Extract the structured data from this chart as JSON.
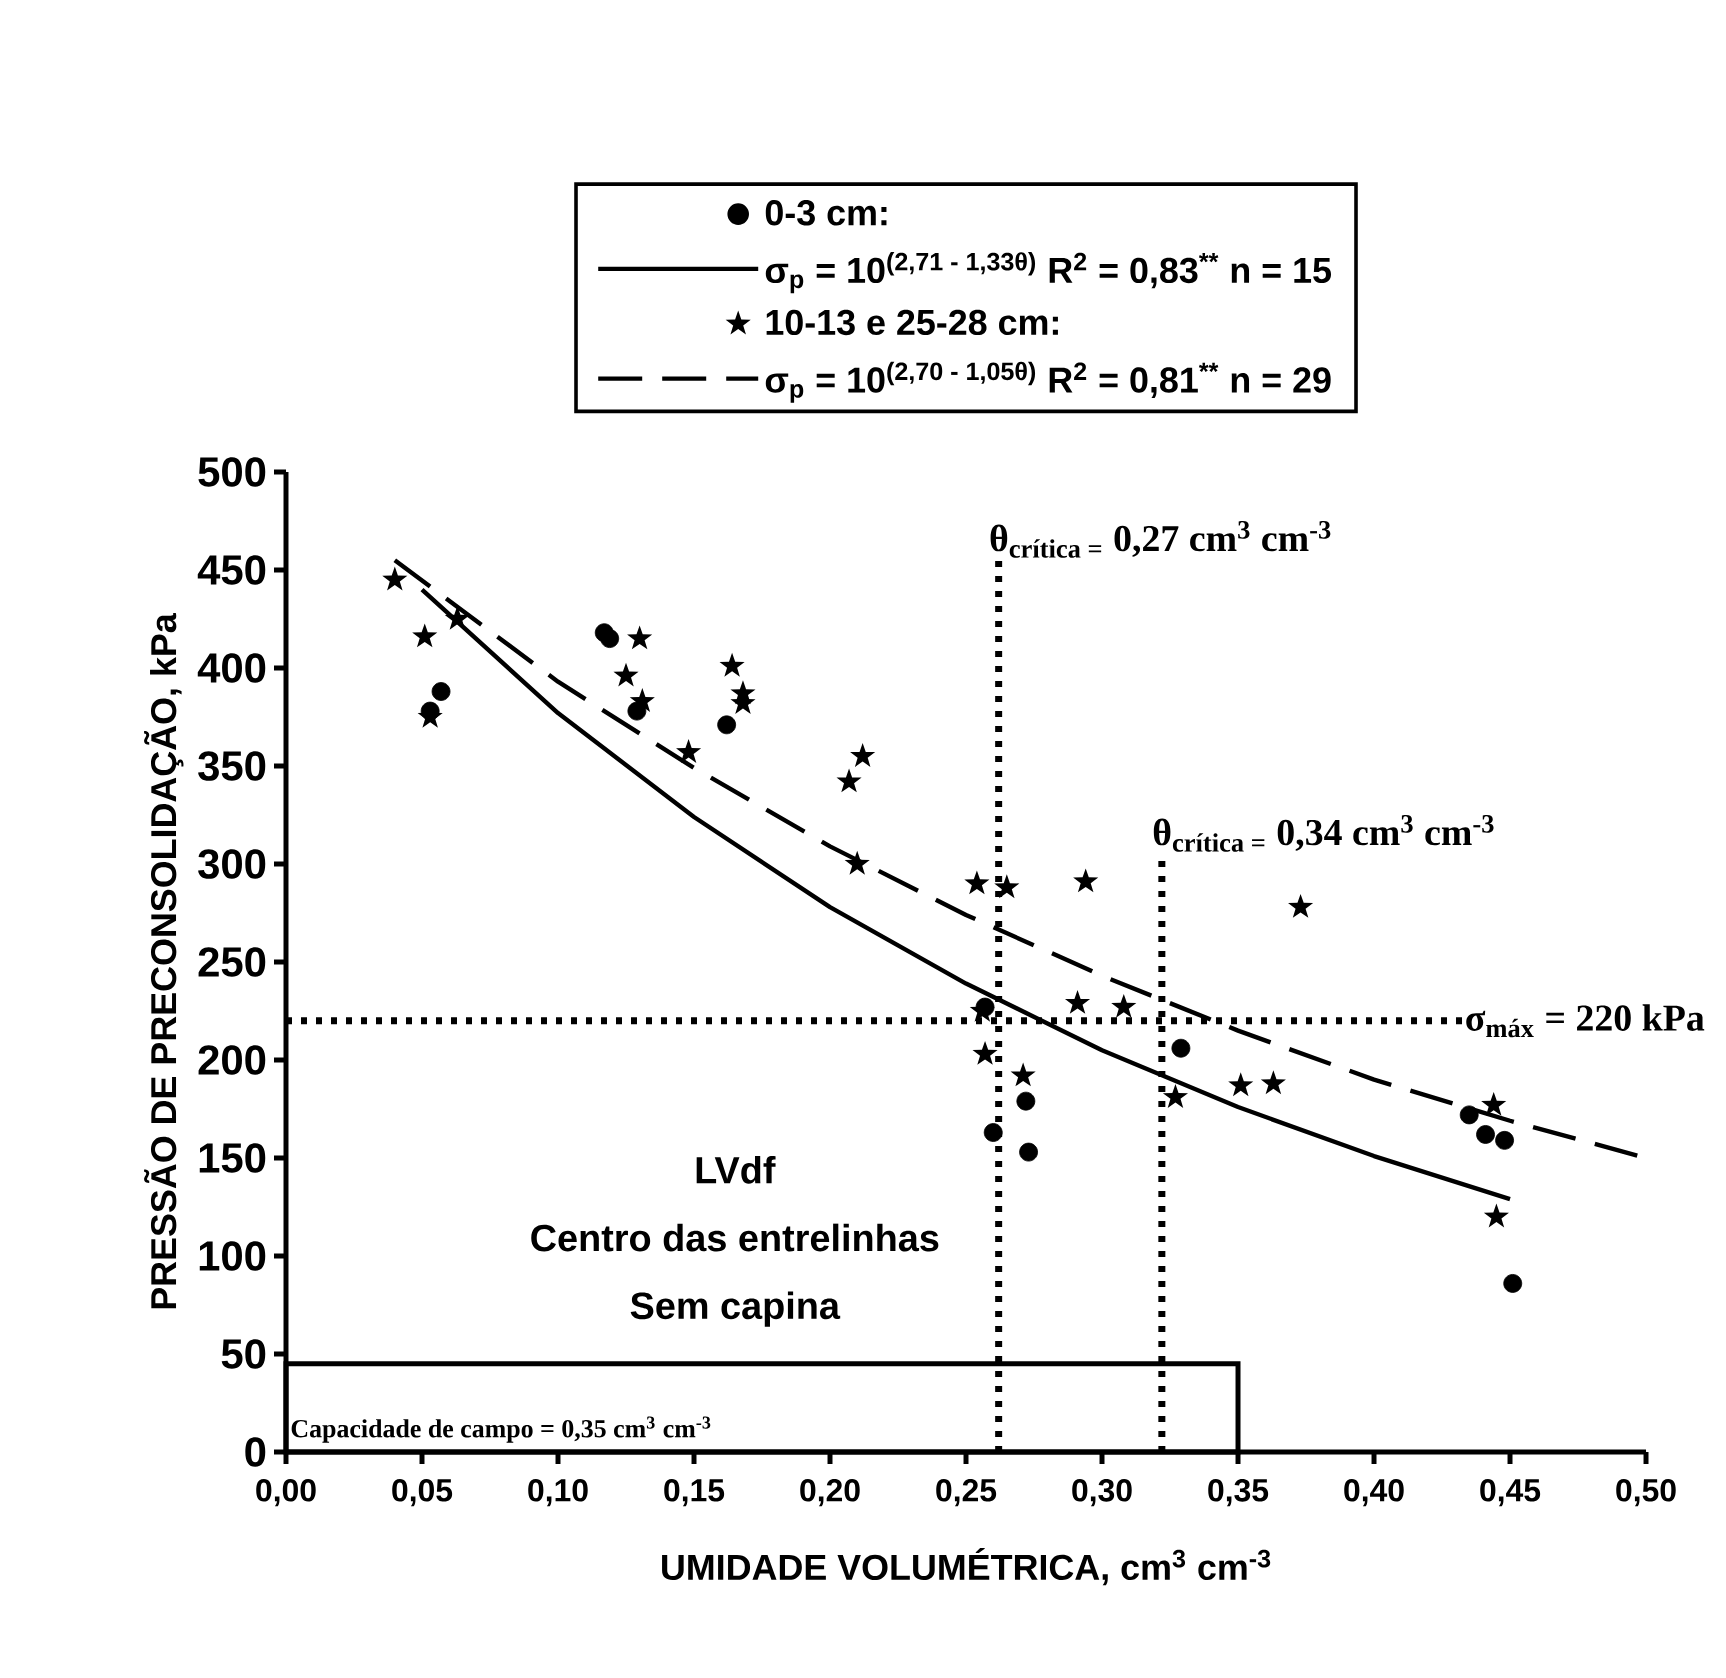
{
  "chart_data": {
    "type": "scatter",
    "xlabel": "UMIDADE VOLUMÉTRICA,  cm$^{3}$ cm$^{-3}$",
    "ylabel": "PRESSÃO DE PRECONSOLIDAÇÃO, kPa",
    "xlim": [
      0,
      0.5
    ],
    "ylim": [
      0,
      500
    ],
    "xticks": [
      {
        "value": 0,
        "label": "0,00"
      },
      {
        "value": 0.05,
        "label": "0,05"
      },
      {
        "value": 0.1,
        "label": "0,10"
      },
      {
        "value": 0.15,
        "label": "0,15"
      },
      {
        "value": 0.2,
        "label": "0,20"
      },
      {
        "value": 0.25,
        "label": "0,25"
      },
      {
        "value": 0.3,
        "label": "0,30"
      },
      {
        "value": 0.35,
        "label": "0,35"
      },
      {
        "value": 0.4,
        "label": "0,40"
      },
      {
        "value": 0.45,
        "label": "0,45"
      },
      {
        "value": 0.5,
        "label": "0,50"
      }
    ],
    "yticks": [
      0,
      50,
      100,
      150,
      200,
      250,
      300,
      350,
      400,
      450,
      500
    ],
    "grid": false,
    "legend": "top",
    "series": [
      {
        "name": "0-3 cm:",
        "type": "scatter",
        "marker": "circle",
        "color": "#000000",
        "x": [
          0.053,
          0.057,
          0.117,
          0.119,
          0.129,
          0.162,
          0.257,
          0.26,
          0.272,
          0.273,
          0.329,
          0.435,
          0.441,
          0.448,
          0.451
        ],
        "values": [
          378,
          388,
          418,
          415,
          378,
          371,
          227,
          163,
          179,
          153,
          206,
          172,
          162,
          159,
          86
        ]
      },
      {
        "name": "σ$_{p}$ = 10$^{(2,71 - 1,33θ)}$  R$^{2}$ = 0,83$^{**}$  n = 15",
        "type": "line",
        "marker": "none",
        "line_style": "solid",
        "color": "#000000",
        "x": [
          0.05,
          0.1,
          0.15,
          0.2,
          0.25,
          0.3,
          0.35,
          0.4,
          0.45
        ],
        "values": [
          440,
          377,
          324,
          278,
          239,
          205,
          176,
          151,
          129
        ]
      },
      {
        "name": "10-13 e 25-28 cm:",
        "type": "scatter",
        "marker": "star",
        "color": "#000000",
        "x": [
          0.04,
          0.051,
          0.053,
          0.063,
          0.125,
          0.13,
          0.131,
          0.148,
          0.164,
          0.168,
          0.168,
          0.207,
          0.212,
          0.21,
          0.254,
          0.265,
          0.256,
          0.257,
          0.271,
          0.294,
          0.373,
          0.291,
          0.308,
          0.327,
          0.351,
          0.363,
          0.444,
          0.445
        ],
        "values": [
          445,
          416,
          375,
          425,
          396,
          415,
          383,
          357,
          401,
          387,
          382,
          342,
          355,
          300,
          290,
          288,
          225,
          203,
          192,
          291,
          278,
          229,
          227,
          181,
          187,
          188,
          177,
          120
        ]
      },
      {
        "name": "σ$_{p}$ = 10$^{(2,70 - 1,05θ)}$  R$^{2}$ = 0,81$^{**}$  n = 29",
        "type": "line",
        "marker": "none",
        "line_style": "dashed",
        "color": "#000000",
        "x": [
          0.04,
          0.1,
          0.15,
          0.2,
          0.25,
          0.3,
          0.35,
          0.4,
          0.45,
          0.5
        ],
        "values": [
          455,
          393,
          349,
          309,
          274,
          243,
          215,
          190,
          169,
          150
        ]
      }
    ],
    "ref_lines": [
      {
        "axis": "x",
        "value": 0.262,
        "label": "θ$_{crítica =}$ 0,27 cm$^{3}$ cm$^{-3}$",
        "line_style": "dotted",
        "color": "#000000"
      },
      {
        "axis": "x",
        "value": 0.322,
        "label": "θ$_{crítica =}$ 0,34 cm$^{3}$ cm$^{-3}$",
        "line_style": "dotted",
        "color": "#000000"
      },
      {
        "axis": "y",
        "value": 220,
        "label": "σ$_{máx}$ = 220 kPa",
        "line_style": "dotted",
        "color": "#000000"
      }
    ],
    "annotations": [
      "LVdf",
      "Centro das entrelinhas",
      "Sem capina",
      "Capacidade de campo =  0,35 cm$^{3}$ cm$^{-3}$"
    ]
  }
}
